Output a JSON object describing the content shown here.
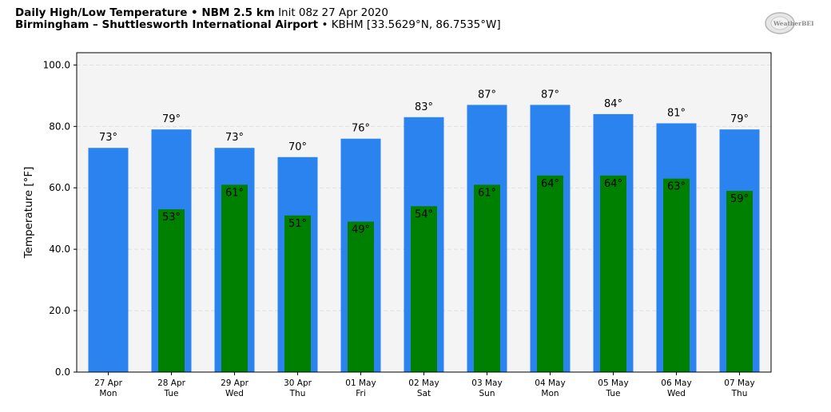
{
  "header": {
    "title_bold": "Daily High/Low Temperature • NBM 2.5 km",
    "title_init": "Init 08z 27 Apr 2020",
    "location_bold": "Birmingham – Shuttlesworth International Airport",
    "location_detail": "• KBHM [33.5629°N, 86.7535°W]"
  },
  "logo": {
    "text": "WeatherBELL",
    "icon": "weatherbell-logo"
  },
  "chart_data": {
    "type": "bar",
    "ylabel": "Temperature [°F]",
    "ylim": [
      0,
      104
    ],
    "yticks": [
      "0.0",
      "20.0",
      "40.0",
      "60.0",
      "80.0",
      "100.0"
    ],
    "ytick_values": [
      0,
      20,
      40,
      60,
      80,
      100
    ],
    "grid": true,
    "categories": [
      {
        "date": "27 Apr",
        "day": "Mon"
      },
      {
        "date": "28 Apr",
        "day": "Tue"
      },
      {
        "date": "29 Apr",
        "day": "Wed"
      },
      {
        "date": "30 Apr",
        "day": "Thu"
      },
      {
        "date": "01 May",
        "day": "Fri"
      },
      {
        "date": "02 May",
        "day": "Sat"
      },
      {
        "date": "03 May",
        "day": "Sun"
      },
      {
        "date": "04 May",
        "day": "Mon"
      },
      {
        "date": "05 May",
        "day": "Tue"
      },
      {
        "date": "06 May",
        "day": "Wed"
      },
      {
        "date": "07 May",
        "day": "Thu"
      }
    ],
    "series": [
      {
        "values": [
          73,
          79,
          73,
          70,
          76,
          83,
          87,
          87,
          84,
          81,
          79
        ],
        "labels": [
          "73°",
          "79°",
          "73°",
          "70°",
          "76°",
          "83°",
          "87°",
          "87°",
          "84°",
          "81°",
          "79°"
        ],
        "color": "#2b83f0"
      },
      {
        "values": [
          null,
          53,
          61,
          51,
          49,
          54,
          61,
          64,
          64,
          63,
          59
        ],
        "labels": [
          "",
          "53°",
          "61°",
          "51°",
          "49°",
          "54°",
          "61°",
          "64°",
          "64°",
          "63°",
          "59°"
        ],
        "color": "#008000"
      }
    ],
    "colors": {
      "plot_bg": "#f4f4f4",
      "grid": "#d9d9d9"
    }
  }
}
